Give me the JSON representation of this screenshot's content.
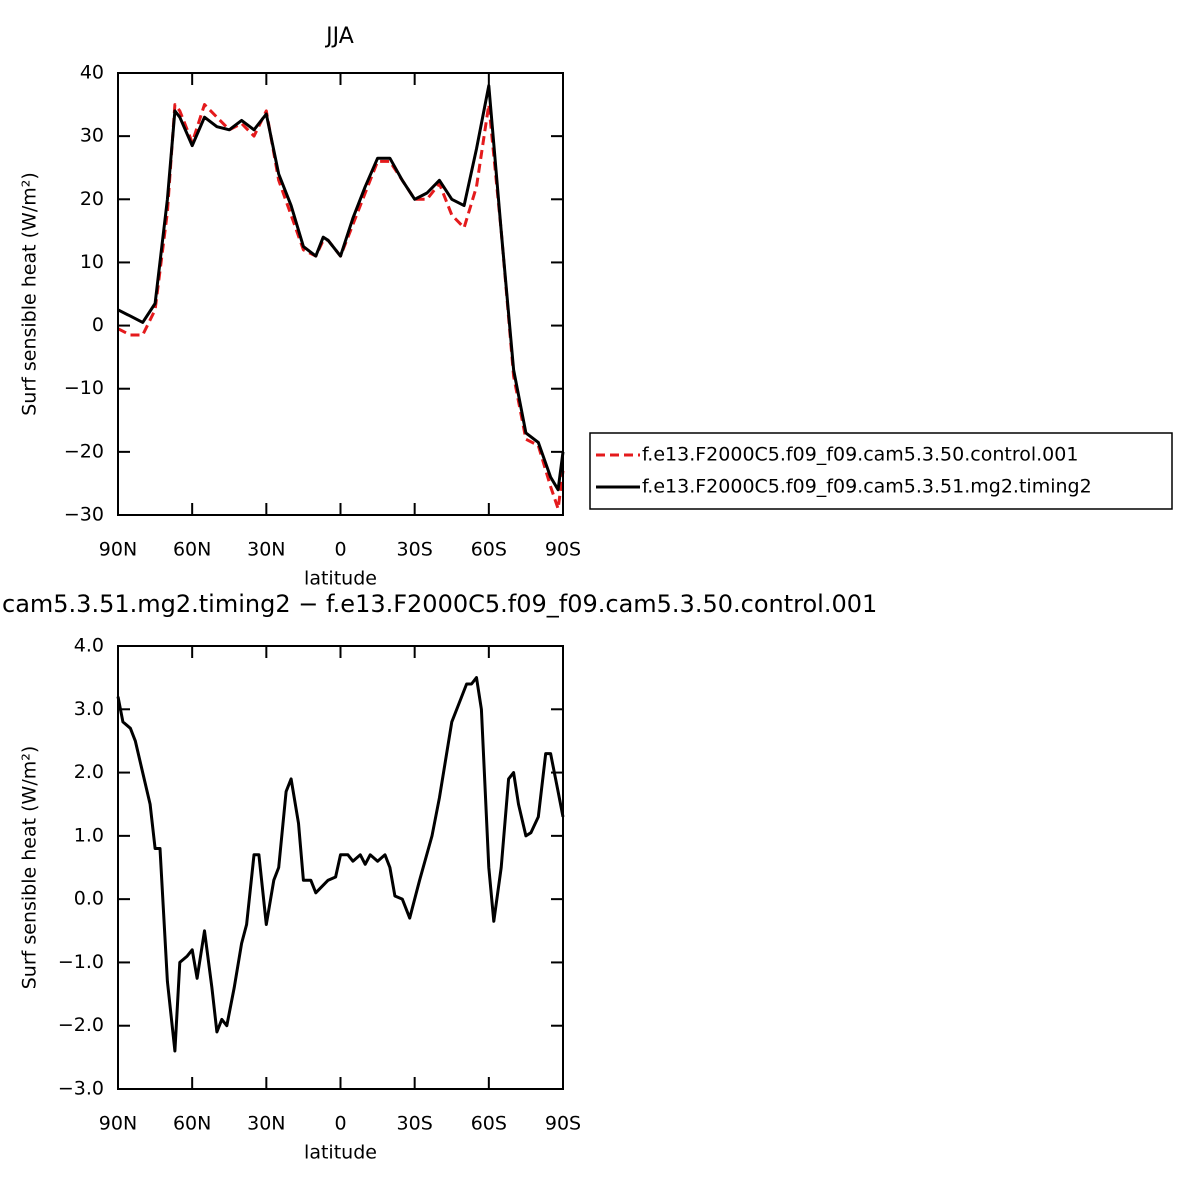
{
  "chart_data": [
    {
      "type": "line",
      "title": "JJA",
      "xlabel": "latitude",
      "ylabel": "Surf sensible heat (W/m²)",
      "x": [
        90,
        85,
        80,
        75,
        70,
        67,
        65,
        60,
        55,
        50,
        45,
        40,
        35,
        30,
        25,
        20,
        15,
        10,
        7,
        5,
        0,
        -5,
        -10,
        -15,
        -20,
        -25,
        -30,
        -35,
        -40,
        -45,
        -50,
        -55,
        -60,
        -65,
        -70,
        -75,
        -80,
        -85,
        -88,
        -90
      ],
      "series": [
        {
          "name": "f.e13.F2000C5.f09_f09.cam5.3.50.control.001",
          "color": "#e41a1c",
          "dash": true,
          "values": [
            -0.5,
            -1.5,
            -1.5,
            2.5,
            18,
            35,
            34,
            29,
            35,
            33,
            31,
            32,
            30,
            34,
            23,
            17.5,
            12,
            11,
            13.5,
            13.5,
            11,
            16,
            21,
            26,
            26,
            23,
            20,
            20,
            22.5,
            17.5,
            15.5,
            22,
            35,
            15,
            -8,
            -18,
            -19,
            -25.5,
            -29,
            -23
          ]
        },
        {
          "name": "f.e13.F2000C5.f09_f09.cam5.3.51.mg2.timing2",
          "color": "#000000",
          "dash": false,
          "values": [
            2.5,
            1.5,
            0.5,
            3.5,
            20,
            34,
            33,
            28.5,
            33,
            31.5,
            31,
            32.5,
            31,
            33.5,
            24,
            19,
            12.5,
            11,
            14,
            13.5,
            11,
            17,
            22,
            26.5,
            26.5,
            23,
            20,
            21,
            23,
            20,
            19,
            28,
            38,
            15,
            -7,
            -17,
            -18.5,
            -24,
            -26,
            -20
          ]
        }
      ],
      "xlim": [
        90,
        -90
      ],
      "xticks": [
        {
          "value": 90,
          "label": "90N"
        },
        {
          "value": 60,
          "label": "60N"
        },
        {
          "value": 30,
          "label": "30N"
        },
        0,
        {
          "value": -30,
          "label": "30S"
        },
        {
          "value": -60,
          "label": "60S"
        },
        {
          "value": -90,
          "label": "90S"
        }
      ],
      "ylim": [
        -30,
        40
      ],
      "yticks": [
        {
          "value": -30,
          "label": "−30"
        },
        {
          "value": -20,
          "label": "−20"
        },
        {
          "value": -10,
          "label": "−10"
        },
        0,
        10,
        20,
        30,
        40
      ],
      "legend": "outside-right"
    },
    {
      "type": "line",
      "title": "cam5.3.51.mg2.timing2 − f.e13.F2000C5.f09_f09.cam5.3.50.control.001",
      "xlabel": "latitude",
      "ylabel": "Surf sensible heat (W/m²)",
      "x": [
        90,
        88,
        85,
        83,
        80,
        77,
        75,
        73,
        70,
        67,
        65,
        62,
        60,
        58,
        55,
        52,
        50,
        48,
        46,
        43,
        40,
        38,
        35,
        33,
        30,
        27,
        25,
        22,
        20,
        17,
        15,
        12,
        10,
        5,
        2,
        0,
        -3,
        -5,
        -8,
        -10,
        -12,
        -15,
        -18,
        -20,
        -22,
        -25,
        -28,
        -32,
        -37,
        -40,
        -45,
        -48,
        -51,
        -53,
        -55,
        -57,
        -60,
        -62,
        -65,
        -68,
        -70,
        -72,
        -75,
        -77,
        -80,
        -83,
        -85,
        -88,
        -90
      ],
      "series": [
        {
          "color": "#000000",
          "dash": false,
          "values": [
            3.2,
            2.8,
            2.7,
            2.5,
            2.0,
            1.5,
            0.8,
            0.8,
            -1.3,
            -2.4,
            -1.0,
            -0.9,
            -0.8,
            -1.25,
            -0.5,
            -1.4,
            -2.1,
            -1.9,
            -2.0,
            -1.4,
            -0.7,
            -0.4,
            0.7,
            0.7,
            -0.4,
            0.3,
            0.5,
            1.7,
            1.9,
            1.2,
            0.3,
            0.3,
            0.1,
            0.3,
            0.35,
            0.7,
            0.7,
            0.6,
            0.7,
            0.55,
            0.7,
            0.6,
            0.7,
            0.5,
            0.05,
            0.0,
            -0.3,
            0.3,
            1.0,
            1.6,
            2.8,
            3.1,
            3.4,
            3.4,
            3.5,
            3.0,
            0.5,
            -0.35,
            0.5,
            1.9,
            2.0,
            1.5,
            1.0,
            1.05,
            1.3,
            2.3,
            2.3,
            1.7,
            1.3
          ]
        }
      ],
      "xlim": [
        90,
        -90
      ],
      "xticks": [
        {
          "value": 90,
          "label": "90N"
        },
        {
          "value": 60,
          "label": "60N"
        },
        {
          "value": 30,
          "label": "30N"
        },
        0,
        {
          "value": -30,
          "label": "30S"
        },
        {
          "value": -60,
          "label": "60S"
        },
        {
          "value": -90,
          "label": "90S"
        }
      ],
      "ylim": [
        -3,
        4
      ],
      "yticks": [
        {
          "value": -3,
          "label": "−3.0"
        },
        {
          "value": -2,
          "label": "−2.0"
        },
        {
          "value": -1,
          "label": "−1.0"
        },
        {
          "value": 0,
          "label": "0.0"
        },
        {
          "value": 1,
          "label": "1.0"
        },
        {
          "value": 2,
          "label": "2.0"
        },
        {
          "value": 3,
          "label": "3.0"
        },
        {
          "value": 4,
          "label": "4.0"
        }
      ]
    }
  ]
}
